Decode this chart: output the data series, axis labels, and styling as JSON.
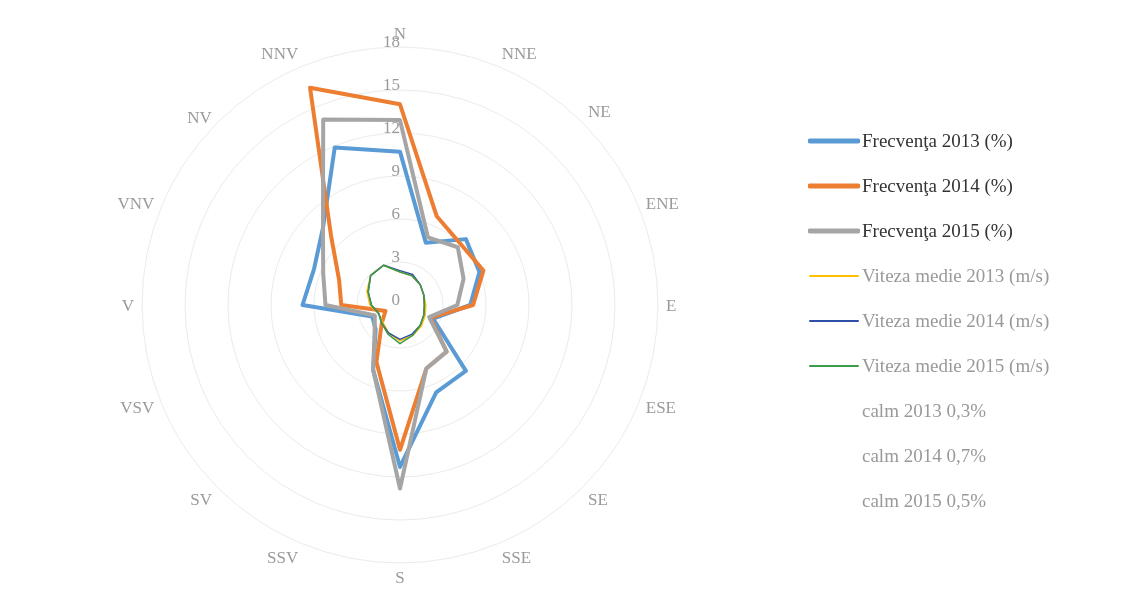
{
  "chart_data": {
    "type": "radar",
    "categories": [
      "N",
      "NNE",
      "NE",
      "ENE",
      "E",
      "ESE",
      "SE",
      "SSE",
      "S",
      "SSV",
      "SV",
      "VSV",
      "V",
      "VNV",
      "NV",
      "NNV"
    ],
    "ylim": [
      0,
      18
    ],
    "yticks": [
      0,
      3,
      6,
      9,
      12,
      15,
      18
    ],
    "grid": true,
    "legend": "right",
    "series": [
      {
        "name": "Frecvenţa 2013 (%)",
        "color": "#5b9bd5",
        "values": [
          10.7,
          4.7,
          6.5,
          6.0,
          4.9,
          2.5,
          6.5,
          6.6,
          11.3,
          4.9,
          2.4,
          2.1,
          6.8,
          6.5,
          7.6,
          11.9
        ]
      },
      {
        "name": "Frecvenţa 2014 (%)",
        "color": "#ed7d31",
        "values": [
          14.0,
          6.7,
          6.0,
          6.3,
          5.1,
          2.3,
          4.6,
          4.8,
          10.1,
          4.3,
          1.8,
          1.1,
          4.1,
          4.6,
          6.8,
          16.4
        ]
      },
      {
        "name": "Frecvenţa 2015 (%)",
        "color": "#a5a5a5",
        "values": [
          12.9,
          5.1,
          5.7,
          4.8,
          4.0,
          2.2,
          4.6,
          4.8,
          12.8,
          4.9,
          2.5,
          1.9,
          5.2,
          5.8,
          7.6,
          14.0
        ]
      },
      {
        "name": "Viteza medie 2013 (m/s)",
        "color": "#ffc000",
        "values": [
          2.3,
          2.2,
          2.0,
          1.8,
          1.8,
          1.9,
          2.1,
          2.3,
          2.5,
          2.1,
          1.7,
          1.6,
          2.1,
          2.5,
          2.9,
          3.0
        ]
      },
      {
        "name": "Viteza medie 2014 (m/s)",
        "color": "#2f4fa8",
        "values": [
          2.4,
          2.3,
          2.0,
          1.8,
          1.7,
          1.8,
          2.0,
          2.2,
          2.4,
          2.1,
          1.8,
          1.6,
          2.0,
          2.4,
          2.9,
          3.0
        ]
      },
      {
        "name": "Viteza medie 2015 (m/s)",
        "color": "#3f9a4a",
        "values": [
          2.3,
          2.2,
          2.0,
          1.8,
          1.7,
          1.8,
          2.0,
          2.3,
          2.7,
          2.2,
          1.8,
          1.6,
          2.0,
          2.4,
          2.9,
          3.0
        ]
      }
    ],
    "annotations": [
      "calm 2013 0,3%",
      "calm 2014 0,7%",
      "calm 2015 0,5%"
    ]
  }
}
